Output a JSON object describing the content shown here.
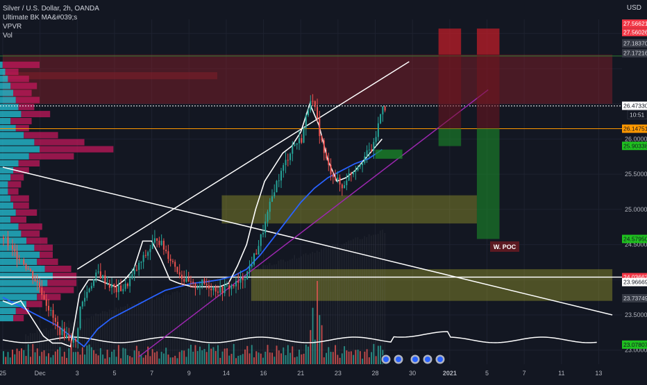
{
  "header": {
    "symbol_line": "Silver / U.S. Dollar, 2h, OANDA",
    "indicator_1": "Ultimate BK MA&#039;s",
    "indicator_2": "VPVR",
    "indicator_3": "Vol",
    "currency": "USD"
  },
  "annotations": {
    "poc_label": "W. POC",
    "countdown": "10:51"
  },
  "colors": {
    "background": "#131722",
    "up": "#26a69a",
    "down": "#ef5350",
    "white_line": "#ffffff",
    "ma_fast": "#ffffff",
    "ma_slow": "#2962ff",
    "trend_purple": "#9c27b0",
    "yellow_zone": "#c9c930",
    "red_zone": "#8b1f2a",
    "green_zone": "#1b8a2a",
    "orange_line": "#ff9800"
  },
  "chart_data": {
    "type": "candlestick",
    "x_ticks": [
      "25",
      "Dec",
      "3",
      "5",
      "7",
      "9",
      "14",
      "16",
      "21",
      "23",
      "28",
      "30",
      "2021",
      "5",
      "7",
      "11",
      "13"
    ],
    "price_ticks": [
      "26.00000",
      "25.50000",
      "25.00000",
      "24.50000",
      "23.50000",
      "23.00000"
    ],
    "ylim": [
      22.8,
      27.7
    ],
    "price_labels": [
      {
        "value": "27.56621",
        "style": "red"
      },
      {
        "value": "27.56026",
        "style": "red"
      },
      {
        "value": "27.18370",
        "style": "gray"
      },
      {
        "value": "27.17216",
        "style": "gray"
      },
      {
        "value": "26.47330",
        "style": "white"
      },
      {
        "value": "26.14751",
        "style": "orange"
      },
      {
        "value": "25.90338",
        "style": "green"
      },
      {
        "value": "24.57950",
        "style": "green"
      },
      {
        "value": "24.03663",
        "style": "red"
      },
      {
        "value": "23.96669",
        "style": "white"
      },
      {
        "value": "23.73749",
        "style": "gray"
      },
      {
        "value": "23.07807",
        "style": "green"
      }
    ],
    "close_path": [
      [
        0,
        24.6
      ],
      [
        4,
        24.4
      ],
      [
        8,
        24.3
      ],
      [
        12,
        24.1
      ],
      [
        16,
        23.9
      ],
      [
        20,
        23.6
      ],
      [
        24,
        23.3
      ],
      [
        28,
        23.2
      ],
      [
        32,
        23.1
      ],
      [
        34,
        23.6
      ],
      [
        38,
        23.9
      ],
      [
        42,
        24.1
      ],
      [
        46,
        23.95
      ],
      [
        50,
        23.85
      ],
      [
        54,
        23.9
      ],
      [
        58,
        24.1
      ],
      [
        62,
        24.3
      ],
      [
        66,
        24.5
      ],
      [
        68,
        24.6
      ],
      [
        72,
        24.4
      ],
      [
        76,
        24.2
      ],
      [
        80,
        24.0
      ],
      [
        84,
        23.9
      ],
      [
        88,
        23.95
      ],
      [
        92,
        23.9
      ],
      [
        96,
        23.85
      ],
      [
        100,
        23.9
      ],
      [
        104,
        23.95
      ],
      [
        108,
        24.1
      ],
      [
        112,
        24.4
      ],
      [
        116,
        24.8
      ],
      [
        120,
        25.3
      ],
      [
        124,
        25.6
      ],
      [
        128,
        25.9
      ],
      [
        132,
        26.0
      ],
      [
        134,
        26.3
      ],
      [
        136,
        26.6
      ],
      [
        138,
        26.4
      ],
      [
        140,
        26.1
      ],
      [
        142,
        25.8
      ],
      [
        144,
        25.6
      ],
      [
        146,
        25.5
      ],
      [
        150,
        25.3
      ],
      [
        152,
        25.45
      ],
      [
        156,
        25.6
      ],
      [
        160,
        25.75
      ],
      [
        164,
        25.9
      ],
      [
        166,
        26.2
      ],
      [
        168,
        26.5
      ],
      [
        170,
        26.4
      ]
    ],
    "ma_fast_path": [
      [
        0,
        23.7
      ],
      [
        4,
        23.65
      ],
      [
        8,
        23.7
      ],
      [
        12,
        23.5
      ],
      [
        16,
        23.3
      ],
      [
        18,
        23.2
      ],
      [
        20,
        23.15
      ],
      [
        22,
        23.1
      ],
      [
        26,
        23.1
      ],
      [
        30,
        23.05
      ],
      [
        34,
        23.8
      ],
      [
        38,
        24.0
      ],
      [
        42,
        24.0
      ],
      [
        46,
        23.95
      ],
      [
        50,
        23.9
      ],
      [
        54,
        24.0
      ],
      [
        58,
        24.15
      ],
      [
        62,
        24.55
      ],
      [
        66,
        24.55
      ],
      [
        70,
        24.3
      ],
      [
        74,
        24.0
      ],
      [
        78,
        23.95
      ],
      [
        84,
        23.9
      ],
      [
        90,
        23.9
      ],
      [
        96,
        23.9
      ],
      [
        100,
        23.95
      ],
      [
        104,
        24.2
      ],
      [
        108,
        24.5
      ],
      [
        112,
        25.0
      ],
      [
        116,
        25.4
      ],
      [
        120,
        25.6
      ],
      [
        124,
        25.8
      ],
      [
        128,
        25.9
      ],
      [
        132,
        26.1
      ],
      [
        136,
        26.5
      ],
      [
        140,
        26.2
      ],
      [
        144,
        25.7
      ],
      [
        148,
        25.4
      ],
      [
        152,
        25.45
      ],
      [
        156,
        25.55
      ],
      [
        160,
        25.7
      ],
      [
        164,
        25.85
      ],
      [
        168,
        26.0
      ]
    ],
    "ma_slow_path": [
      [
        0,
        23.75
      ],
      [
        6,
        23.65
      ],
      [
        12,
        23.55
      ],
      [
        18,
        23.45
      ],
      [
        24,
        23.35
      ],
      [
        30,
        23.2
      ],
      [
        36,
        23.05
      ],
      [
        42,
        23.3
      ],
      [
        48,
        23.45
      ],
      [
        54,
        23.55
      ],
      [
        60,
        23.65
      ],
      [
        66,
        23.75
      ],
      [
        72,
        23.85
      ],
      [
        78,
        23.9
      ],
      [
        84,
        23.95
      ],
      [
        90,
        23.97
      ],
      [
        96,
        24.0
      ],
      [
        102,
        24.05
      ],
      [
        108,
        24.15
      ],
      [
        114,
        24.35
      ],
      [
        120,
        24.6
      ],
      [
        126,
        24.85
      ],
      [
        132,
        25.1
      ],
      [
        138,
        25.3
      ],
      [
        144,
        25.45
      ],
      [
        150,
        25.55
      ],
      [
        156,
        25.65
      ],
      [
        162,
        25.72
      ],
      [
        168,
        25.85
      ]
    ],
    "trendlines": [
      {
        "name": "rising-channel-top",
        "from": [
          33,
          24.15
        ],
        "to": [
          180,
          27.1
        ],
        "color": "white"
      },
      {
        "name": "falling-trendline",
        "from": [
          0,
          25.6
        ],
        "to": [
          270,
          23.5
        ],
        "color": "white"
      },
      {
        "name": "purple-support",
        "from": [
          60,
          22.9
        ],
        "to": [
          215,
          26.7
        ],
        "color": "purple"
      }
    ],
    "horizontal_levels": [
      {
        "name": "level-27-18",
        "value": 27.18,
        "color": "green-thin"
      },
      {
        "name": "level-26-47",
        "value": 26.47,
        "color": "white-dotted"
      },
      {
        "name": "level-26-14",
        "value": 26.147,
        "color": "orange"
      },
      {
        "name": "level-24-03",
        "value": 24.037,
        "color": "white"
      }
    ],
    "zones": [
      {
        "name": "supply-zone",
        "from_x": 0,
        "to_x": 270,
        "low": 26.5,
        "high": 27.2,
        "color": "red"
      },
      {
        "name": "upper-resist-band",
        "from_x": 0,
        "to_x": 95,
        "low": 26.85,
        "high": 26.95,
        "color": "red"
      },
      {
        "name": "demand-zone-mid",
        "from_x": 97,
        "to_x": 210,
        "low": 24.8,
        "high": 25.2,
        "color": "yellow"
      },
      {
        "name": "demand-zone-low",
        "from_x": 110,
        "to_x": 270,
        "low": 23.7,
        "high": 24.15,
        "color": "yellow"
      }
    ],
    "trade_boxes": [
      {
        "name": "trade-1",
        "x_from": 193,
        "x_to": 203,
        "stop_high": 27.57,
        "entry": 26.15,
        "target": 25.9
      },
      {
        "name": "trade-2",
        "x_from": 210,
        "x_to": 220,
        "stop_high": 27.57,
        "entry": 26.15,
        "target": 24.58
      }
    ],
    "vpvr_bars": [
      {
        "price": 27.05,
        "up": 2,
        "down": 28
      },
      {
        "price": 26.95,
        "up": 4,
        "down": 10
      },
      {
        "price": 26.85,
        "up": 6,
        "down": 16
      },
      {
        "price": 26.75,
        "up": 8,
        "down": 20
      },
      {
        "price": 26.65,
        "up": 10,
        "down": 14
      },
      {
        "price": 26.55,
        "up": 12,
        "down": 18
      },
      {
        "price": 26.45,
        "up": 14,
        "down": 12
      },
      {
        "price": 26.35,
        "up": 16,
        "down": 22
      },
      {
        "price": 26.25,
        "up": 8,
        "down": 16
      },
      {
        "price": 26.15,
        "up": 12,
        "down": 10
      },
      {
        "price": 26.05,
        "up": 18,
        "down": 26
      },
      {
        "price": 25.95,
        "up": 26,
        "down": 38
      },
      {
        "price": 25.85,
        "up": 30,
        "down": 56
      },
      {
        "price": 25.75,
        "up": 22,
        "down": 34
      },
      {
        "price": 25.65,
        "up": 14,
        "down": 16
      },
      {
        "price": 25.55,
        "up": 10,
        "down": 12
      },
      {
        "price": 25.45,
        "up": 8,
        "down": 10
      },
      {
        "price": 25.35,
        "up": 6,
        "down": 10
      },
      {
        "price": 25.25,
        "up": 6,
        "down": 8
      },
      {
        "price": 25.15,
        "up": 8,
        "down": 14
      },
      {
        "price": 25.05,
        "up": 10,
        "down": 12
      },
      {
        "price": 24.95,
        "up": 12,
        "down": 16
      },
      {
        "price": 24.85,
        "up": 8,
        "down": 12
      },
      {
        "price": 24.75,
        "up": 14,
        "down": 18
      },
      {
        "price": 24.65,
        "up": 16,
        "down": 14
      },
      {
        "price": 24.55,
        "up": 20,
        "down": 16
      },
      {
        "price": 24.45,
        "up": 26,
        "down": 14
      },
      {
        "price": 24.35,
        "up": 30,
        "down": 10
      },
      {
        "price": 24.25,
        "up": 28,
        "down": 16
      },
      {
        "price": 24.15,
        "up": 34,
        "down": 20
      },
      {
        "price": 24.05,
        "up": 40,
        "down": 18
      },
      {
        "price": 23.95,
        "up": 36,
        "down": 22
      },
      {
        "price": 23.85,
        "up": 30,
        "down": 26
      },
      {
        "price": 23.75,
        "up": 28,
        "down": 18
      },
      {
        "price": 23.65,
        "up": 20,
        "down": 12
      },
      {
        "price": 23.55,
        "up": 12,
        "down": 10
      },
      {
        "price": 23.45,
        "up": 10,
        "down": 8
      }
    ],
    "volume_seed": 7,
    "events_count": 5
  }
}
